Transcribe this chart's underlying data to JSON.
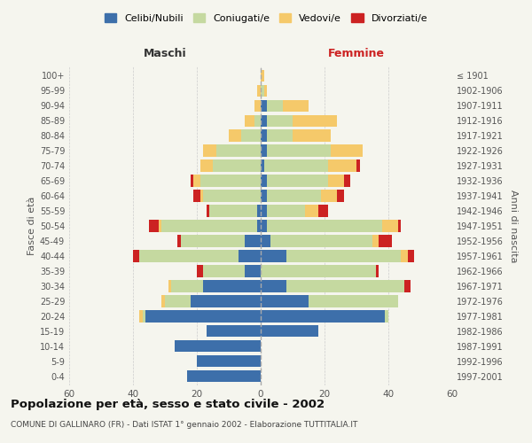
{
  "age_groups": [
    "0-4",
    "5-9",
    "10-14",
    "15-19",
    "20-24",
    "25-29",
    "30-34",
    "35-39",
    "40-44",
    "45-49",
    "50-54",
    "55-59",
    "60-64",
    "65-69",
    "70-74",
    "75-79",
    "80-84",
    "85-89",
    "90-94",
    "95-99",
    "100+"
  ],
  "birth_years": [
    "1997-2001",
    "1992-1996",
    "1987-1991",
    "1982-1986",
    "1977-1981",
    "1972-1976",
    "1967-1971",
    "1962-1966",
    "1957-1961",
    "1952-1956",
    "1947-1951",
    "1942-1946",
    "1937-1941",
    "1932-1936",
    "1927-1931",
    "1922-1926",
    "1917-1921",
    "1912-1916",
    "1907-1911",
    "1902-1906",
    "≤ 1901"
  ],
  "maschi": {
    "celibe": [
      23,
      20,
      27,
      17,
      36,
      22,
      18,
      5,
      7,
      5,
      1,
      1,
      0,
      0,
      0,
      0,
      0,
      0,
      0,
      0,
      0
    ],
    "coniugato": [
      0,
      0,
      0,
      0,
      1,
      8,
      10,
      13,
      31,
      20,
      30,
      15,
      18,
      19,
      15,
      14,
      6,
      2,
      0,
      0,
      0
    ],
    "vedovo": [
      0,
      0,
      0,
      0,
      1,
      1,
      1,
      0,
      0,
      0,
      1,
      0,
      1,
      2,
      4,
      4,
      4,
      3,
      2,
      1,
      0
    ],
    "divorziato": [
      0,
      0,
      0,
      0,
      0,
      0,
      0,
      2,
      2,
      1,
      3,
      1,
      2,
      1,
      0,
      0,
      0,
      0,
      0,
      0,
      0
    ]
  },
  "femmine": {
    "nubile": [
      0,
      0,
      0,
      18,
      39,
      15,
      8,
      0,
      8,
      3,
      2,
      2,
      2,
      2,
      1,
      2,
      2,
      2,
      2,
      0,
      0
    ],
    "coniugata": [
      0,
      0,
      0,
      0,
      1,
      28,
      37,
      36,
      36,
      32,
      36,
      12,
      17,
      19,
      20,
      20,
      8,
      8,
      5,
      1,
      0
    ],
    "vedova": [
      0,
      0,
      0,
      0,
      0,
      0,
      0,
      0,
      2,
      2,
      5,
      4,
      5,
      5,
      9,
      10,
      12,
      14,
      8,
      1,
      1
    ],
    "divorziata": [
      0,
      0,
      0,
      0,
      0,
      0,
      2,
      1,
      2,
      4,
      1,
      3,
      2,
      2,
      1,
      0,
      0,
      0,
      0,
      0,
      0
    ]
  },
  "colors": {
    "celibe": "#3d6faa",
    "coniugato": "#c5d9a0",
    "vedovo": "#f5c96a",
    "divorziato": "#cc2222"
  },
  "title": "Popolazione per età, sesso e stato civile - 2002",
  "subtitle": "COMUNE DI GALLINARO (FR) - Dati ISTAT 1° gennaio 2002 - Elaborazione TUTTITALIA.IT",
  "xlabel_left": "Maschi",
  "xlabel_right": "Femmine",
  "ylabel_left": "Fasce di età",
  "ylabel_right": "Anni di nascita",
  "xlim": 60,
  "legend_labels": [
    "Celibi/Nubili",
    "Coniugati/e",
    "Vedovi/e",
    "Divorziati/e"
  ],
  "bg_color": "#f5f5ee"
}
